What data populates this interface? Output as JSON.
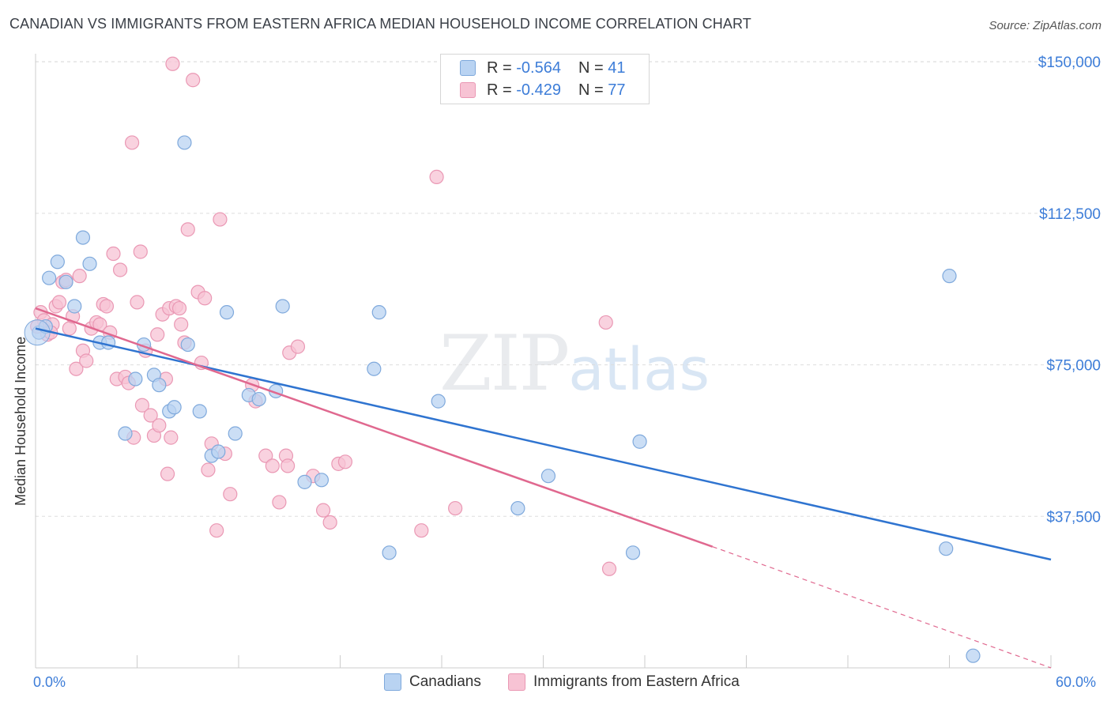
{
  "header": {
    "title": "CANADIAN VS IMMIGRANTS FROM EASTERN AFRICA MEDIAN HOUSEHOLD INCOME CORRELATION CHART",
    "source": "Source: ZipAtlas.com"
  },
  "watermark": {
    "zip": "ZIP",
    "atlas": "atlas"
  },
  "legend": {
    "series": [
      {
        "r_label": "R = ",
        "r_value": "-0.564",
        "n_label": "N = ",
        "n_value": "41"
      },
      {
        "r_label": "R = ",
        "r_value": "-0.429",
        "n_label": "N = ",
        "n_value": "77"
      }
    ]
  },
  "colors": {
    "blue_fill": "#b9d3f2",
    "blue_stroke": "#7fa9dc",
    "blue_line": "#2f74d0",
    "pink_fill": "#f7c3d4",
    "pink_stroke": "#ea98b4",
    "pink_line": "#e0688f",
    "grid": "#dddddd",
    "tick_label": "#3d7dd8"
  },
  "chart_data": {
    "type": "scatter",
    "title": "CANADIAN VS IMMIGRANTS FROM EASTERN AFRICA MEDIAN HOUSEHOLD INCOME CORRELATION CHART",
    "xlabel": "",
    "ylabel": "Median Household Income",
    "xlim": [
      0,
      60
    ],
    "ylim": [
      0,
      152000
    ],
    "x_tick_labels": [
      "0.0%",
      "60.0%"
    ],
    "y_ticks": [
      37500,
      75000,
      112500,
      150000
    ],
    "y_tick_labels": [
      "$37,500",
      "$75,000",
      "$112,500",
      "$150,000"
    ],
    "grid": true,
    "legend_position": "top-center",
    "series": [
      {
        "name": "Canadians",
        "color": "#b9d3f2",
        "trend": {
          "x": [
            0,
            60
          ],
          "y": [
            84000,
            26800
          ]
        },
        "points": [
          [
            0.2,
            83000
          ],
          [
            0.6,
            84500
          ],
          [
            0.8,
            96500
          ],
          [
            1.3,
            100500
          ],
          [
            1.8,
            95500
          ],
          [
            2.3,
            89500
          ],
          [
            2.8,
            106500
          ],
          [
            3.2,
            100000
          ],
          [
            3.8,
            80500
          ],
          [
            4.3,
            80500
          ],
          [
            5.3,
            58000
          ],
          [
            5.9,
            71500
          ],
          [
            6.4,
            80000
          ],
          [
            7.0,
            72500
          ],
          [
            7.3,
            70000
          ],
          [
            7.9,
            63500
          ],
          [
            8.2,
            64500
          ],
          [
            8.8,
            130000
          ],
          [
            9.0,
            80000
          ],
          [
            9.7,
            63500
          ],
          [
            10.4,
            52500
          ],
          [
            10.8,
            53500
          ],
          [
            11.3,
            88000
          ],
          [
            11.8,
            58000
          ],
          [
            12.6,
            67500
          ],
          [
            13.2,
            66500
          ],
          [
            14.2,
            68500
          ],
          [
            14.6,
            89500
          ],
          [
            15.9,
            46000
          ],
          [
            16.9,
            46500
          ],
          [
            20.0,
            74000
          ],
          [
            20.3,
            88000
          ],
          [
            20.9,
            28500
          ],
          [
            23.8,
            66000
          ],
          [
            28.5,
            39500
          ],
          [
            30.3,
            47500
          ],
          [
            35.3,
            28500
          ],
          [
            35.7,
            56000
          ],
          [
            53.8,
            29500
          ],
          [
            54.0,
            97000
          ],
          [
            55.4,
            3000
          ]
        ]
      },
      {
        "name": "Immigrants from Eastern Africa",
        "color": "#f7c3d4",
        "trend": {
          "x": [
            0,
            40
          ],
          "y": [
            89000,
            30000
          ]
        },
        "trend_dashed": {
          "x": [
            40,
            60
          ],
          "y": [
            30000,
            0
          ]
        },
        "points": [
          [
            0.3,
            88000
          ],
          [
            0.5,
            86000
          ],
          [
            0.7,
            82500
          ],
          [
            1.0,
            85000
          ],
          [
            1.2,
            89500
          ],
          [
            1.4,
            90500
          ],
          [
            1.6,
            95500
          ],
          [
            1.8,
            96000
          ],
          [
            2.0,
            84000
          ],
          [
            2.2,
            87000
          ],
          [
            2.4,
            74000
          ],
          [
            2.6,
            97000
          ],
          [
            2.8,
            78500
          ],
          [
            3.0,
            76000
          ],
          [
            3.3,
            84000
          ],
          [
            3.6,
            85500
          ],
          [
            3.8,
            85000
          ],
          [
            4.0,
            90000
          ],
          [
            4.2,
            89500
          ],
          [
            4.4,
            83000
          ],
          [
            4.6,
            102500
          ],
          [
            4.8,
            71500
          ],
          [
            5.0,
            98500
          ],
          [
            5.3,
            72000
          ],
          [
            5.5,
            70500
          ],
          [
            5.7,
            130000
          ],
          [
            5.8,
            57000
          ],
          [
            6.0,
            90500
          ],
          [
            6.2,
            103000
          ],
          [
            6.3,
            65000
          ],
          [
            6.5,
            78500
          ],
          [
            6.8,
            62500
          ],
          [
            7.0,
            57500
          ],
          [
            7.2,
            82500
          ],
          [
            7.3,
            60000
          ],
          [
            7.5,
            87500
          ],
          [
            7.7,
            71500
          ],
          [
            7.8,
            48000
          ],
          [
            7.9,
            89000
          ],
          [
            8.0,
            57000
          ],
          [
            8.1,
            149500
          ],
          [
            8.3,
            89500
          ],
          [
            8.5,
            89000
          ],
          [
            8.6,
            85000
          ],
          [
            8.8,
            80500
          ],
          [
            9.0,
            108500
          ],
          [
            9.3,
            145500
          ],
          [
            9.6,
            93000
          ],
          [
            9.8,
            75500
          ],
          [
            10.0,
            91500
          ],
          [
            10.2,
            49000
          ],
          [
            10.4,
            55500
          ],
          [
            10.7,
            34000
          ],
          [
            10.9,
            111000
          ],
          [
            11.2,
            53000
          ],
          [
            11.5,
            43000
          ],
          [
            12.8,
            70000
          ],
          [
            13.0,
            66000
          ],
          [
            13.6,
            52500
          ],
          [
            14.0,
            50000
          ],
          [
            14.4,
            41000
          ],
          [
            14.8,
            52500
          ],
          [
            15.0,
            78000
          ],
          [
            15.5,
            79500
          ],
          [
            16.4,
            47500
          ],
          [
            17.0,
            39000
          ],
          [
            17.4,
            36000
          ],
          [
            17.9,
            50500
          ],
          [
            18.3,
            51000
          ],
          [
            22.8,
            34000
          ],
          [
            23.7,
            121500
          ],
          [
            24.8,
            39500
          ],
          [
            33.9,
            24500
          ],
          [
            33.7,
            85500
          ],
          [
            0.1,
            84500
          ],
          [
            0.9,
            83000
          ],
          [
            14.9,
            50000
          ]
        ]
      }
    ]
  },
  "bottom_legend": {
    "items": [
      "Canadians",
      "Immigrants from Eastern Africa"
    ]
  }
}
